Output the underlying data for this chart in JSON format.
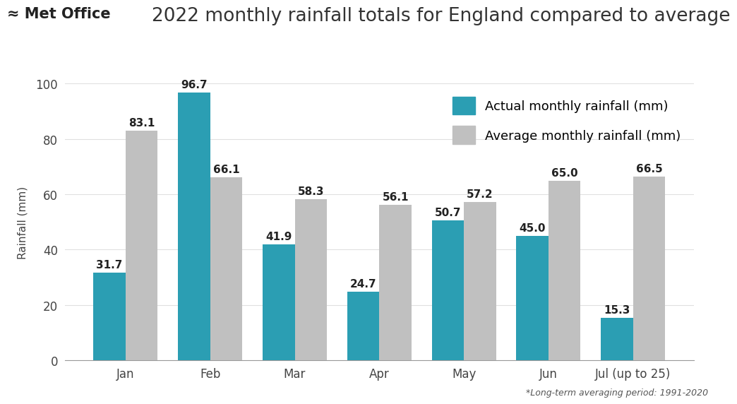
{
  "title": "2022 monthly rainfall totals for England compared to average",
  "ylabel": "Rainfall (mm)",
  "footnote": "*Long-term averaging period: 1991-2020",
  "months": [
    "Jan",
    "Feb",
    "Mar",
    "Apr",
    "May",
    "Jun",
    "Jul (up to 25)"
  ],
  "actual": [
    31.7,
    96.7,
    41.9,
    24.7,
    50.7,
    45.0,
    15.3
  ],
  "average": [
    83.1,
    66.1,
    58.3,
    56.1,
    57.2,
    65.0,
    66.5
  ],
  "actual_color": "#2B9EB3",
  "average_color": "#C0C0C0",
  "actual_label": "Actual monthly rainfall (mm)",
  "average_label": "Average monthly rainfall (mm)",
  "ylim": [
    0,
    100
  ],
  "yticks": [
    0,
    20,
    40,
    60,
    80,
    100
  ],
  "background_color": "#FFFFFF",
  "bar_width": 0.38,
  "title_fontsize": 19,
  "label_fontsize": 11,
  "tick_fontsize": 12,
  "annotation_fontsize": 11,
  "legend_fontsize": 13,
  "logo_fontsize": 15
}
